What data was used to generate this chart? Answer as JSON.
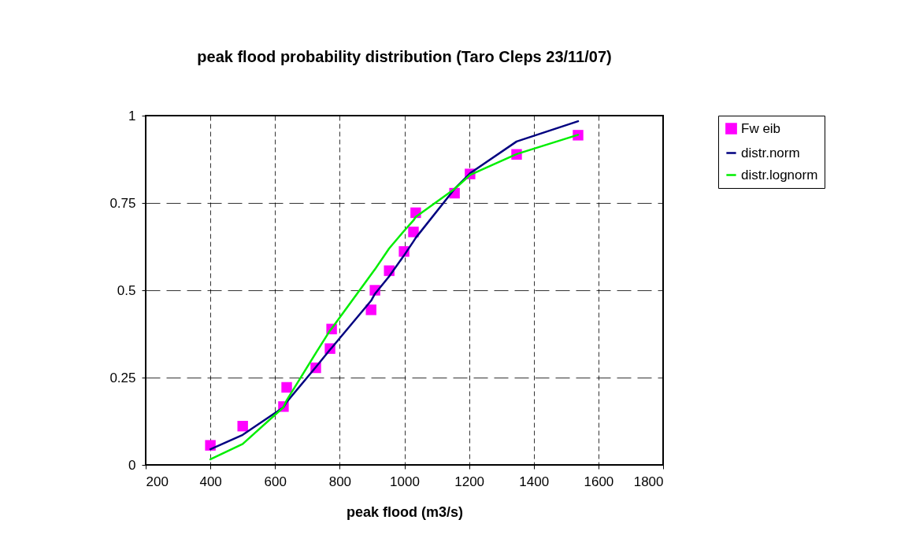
{
  "chart_data": {
    "type": "line",
    "title": "peak flood probability distribution (Taro Cleps 23/11/07)",
    "xlabel": "peak flood (m3/s)",
    "xlim": [
      200,
      1800
    ],
    "xticks": [
      200,
      400,
      600,
      800,
      1000,
      1200,
      1400,
      1600,
      1800
    ],
    "ylim": [
      0,
      1
    ],
    "yticks": [
      0,
      0.25,
      0.5,
      0.75,
      1
    ],
    "grid": true,
    "legend": "right",
    "series": [
      {
        "name": "Fw eib",
        "type": "scatter",
        "marker": "square",
        "color": "#ff00ff",
        "x": [
          400,
          500,
          626,
          636,
          726,
          770,
          775,
          897,
          909,
          953,
          999,
          1028,
          1035,
          1155,
          1203,
          1347,
          1537
        ],
        "values": [
          0.056,
          0.111,
          0.167,
          0.222,
          0.278,
          0.333,
          0.389,
          0.444,
          0.5,
          0.556,
          0.611,
          0.667,
          0.722,
          0.778,
          0.833,
          0.889,
          0.944
        ]
      },
      {
        "name": "distr.norm",
        "color": "#000080",
        "x": [
          400,
          500,
          626,
          636,
          726,
          770,
          775,
          897,
          909,
          953,
          999,
          1028,
          1035,
          1155,
          1203,
          1347,
          1537
        ],
        "values": [
          0.045,
          0.086,
          0.165,
          0.18,
          0.28,
          0.33,
          0.335,
          0.47,
          0.49,
          0.54,
          0.6,
          0.64,
          0.65,
          0.79,
          0.835,
          0.926,
          0.984
        ]
      },
      {
        "name": "distr.lognorm",
        "color": "#00ee00",
        "x": [
          400,
          500,
          626,
          636,
          726,
          770,
          775,
          897,
          909,
          953,
          999,
          1028,
          1035,
          1155,
          1203,
          1347,
          1537
        ],
        "values": [
          0.016,
          0.06,
          0.165,
          0.185,
          0.32,
          0.385,
          0.39,
          0.545,
          0.56,
          0.62,
          0.67,
          0.7,
          0.71,
          0.79,
          0.83,
          0.89,
          0.945
        ]
      }
    ]
  }
}
